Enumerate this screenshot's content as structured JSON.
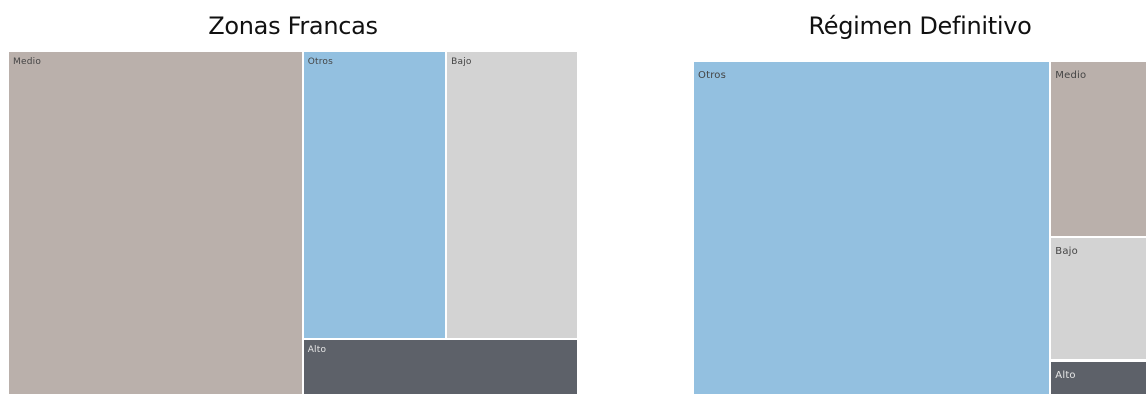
{
  "chart_data": [
    {
      "type": "treemap",
      "title": "Zonas Francas",
      "categories": [
        "Medio",
        "Otros",
        "Bajo",
        "Alto"
      ],
      "values": [
        51.7,
        21.1,
        19.4,
        7.8
      ],
      "colors": {
        "Medio": "#bab0ab",
        "Otros": "#93c0e0",
        "Bajo": "#d3d3d3",
        "Alto": "#5d6169"
      },
      "label_colors": {
        "Medio": "#444444",
        "Otros": "#444444",
        "Bajo": "#444444",
        "Alto": "#e6e6e6"
      }
    },
    {
      "type": "treemap",
      "title": "Régimen Definitivo",
      "categories": [
        "Otros",
        "Medio",
        "Bajo",
        "Alto"
      ],
      "values": [
        78.7,
        11.2,
        7.9,
        2.2
      ],
      "colors": {
        "Otros": "#93c0e0",
        "Medio": "#bab0ab",
        "Bajo": "#d3d3d3",
        "Alto": "#5d6169"
      },
      "label_colors": {
        "Otros": "#444444",
        "Medio": "#444444",
        "Bajo": "#444444",
        "Alto": "#e6e6e6"
      }
    }
  ]
}
